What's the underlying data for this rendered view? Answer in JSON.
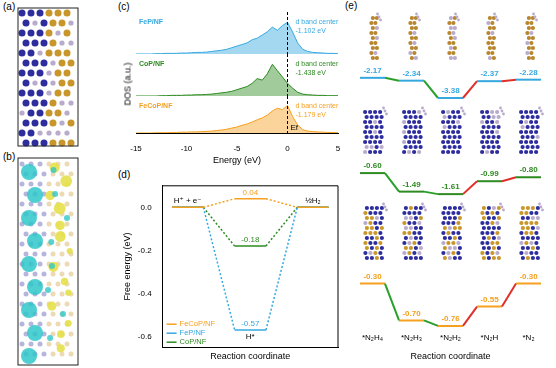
{
  "images": [
    {
      "panel": "(a)"
    },
    {
      "panel": "(b)"
    }
  ],
  "chart_data": [
    {
      "type": "line",
      "panel": "(c)",
      "title": "FeP/NF",
      "color": "#35a8e0",
      "x": [
        -15,
        -14.5,
        -14,
        -13.5,
        -13,
        -12.5,
        -12,
        -11.5,
        -11,
        -10.5,
        -10,
        -9.5,
        -9,
        -8.5,
        -8,
        -7.5,
        -7,
        -6.5,
        -6,
        -5.5,
        -5,
        -4.5,
        -4,
        -3.5,
        -3,
        -2.5,
        -2,
        -1.5,
        -1,
        -0.5,
        0,
        0.5,
        1,
        1.5,
        2,
        2.5,
        3,
        3.5,
        4,
        4.5,
        5
      ],
      "values": [
        0,
        0,
        0,
        0,
        0.01,
        0.01,
        0.02,
        0.02,
        0.02,
        0.03,
        0.03,
        0.04,
        0.05,
        0.05,
        0.06,
        0.08,
        0.1,
        0.12,
        0.15,
        0.2,
        0.25,
        0.3,
        0.35,
        0.45,
        0.5,
        0.6,
        0.7,
        0.85,
        0.75,
        0.9,
        1.0,
        0.7,
        0.35,
        0.15,
        0.08,
        0.05,
        0.04,
        0.03,
        0.02,
        0.02,
        0.01
      ],
      "xlim": [
        -15,
        5
      ],
      "ylim": [
        0,
        1.2
      ],
      "fermi_level": 0,
      "annotations": [
        "d band center",
        "-1.102 eV"
      ],
      "tick_labels": false
    },
    {
      "type": "line",
      "panel": "(c)",
      "title": "CoP/NF",
      "color": "#2e8b22",
      "ylabel": "DOS (a.u.)",
      "x": [
        -15,
        -14.5,
        -14,
        -13.5,
        -13,
        -12.5,
        -12,
        -11.5,
        -11,
        -10.5,
        -10,
        -9.5,
        -9,
        -8.5,
        -8,
        -7.5,
        -7,
        -6.5,
        -6,
        -5.5,
        -5,
        -4.5,
        -4,
        -3.5,
        -3,
        -2.5,
        -2,
        -1.5,
        -1,
        -0.5,
        0,
        0.5,
        1,
        1.5,
        2,
        2.5,
        3,
        3.5,
        4,
        4.5,
        5
      ],
      "values": [
        0,
        0,
        0,
        0,
        0,
        0.01,
        0.01,
        0.02,
        0.02,
        0.02,
        0.03,
        0.03,
        0.04,
        0.04,
        0.05,
        0.06,
        0.08,
        0.1,
        0.12,
        0.15,
        0.2,
        0.25,
        0.3,
        0.4,
        0.55,
        0.5,
        0.7,
        1.0,
        0.8,
        0.6,
        0.4,
        0.25,
        0.12,
        0.06,
        0.04,
        0.03,
        0.02,
        0.02,
        0.01,
        0.01,
        0.01
      ],
      "xlim": [
        -15,
        5
      ],
      "ylim": [
        0,
        1.2
      ],
      "fermi_level": 0,
      "annotations": [
        "d band center",
        "-1.438 eV"
      ],
      "tick_labels": false
    },
    {
      "type": "line",
      "panel": "(c)",
      "title": "FeCoP/NF",
      "color": "#f5a020",
      "x": [
        -15,
        -14.5,
        -14,
        -13.5,
        -13,
        -12.5,
        -12,
        -11.5,
        -11,
        -10.5,
        -10,
        -9.5,
        -9,
        -8.5,
        -8,
        -7.5,
        -7,
        -6.5,
        -6,
        -5.5,
        -5,
        -4.5,
        -4,
        -3.5,
        -3,
        -2.5,
        -2,
        -1.5,
        -1,
        -0.5,
        0,
        0.5,
        1,
        1.5,
        2,
        2.5,
        3,
        3.5,
        4,
        4.5,
        5
      ],
      "values": [
        0,
        0,
        0,
        0,
        0.01,
        0.01,
        0.01,
        0.02,
        0.02,
        0.03,
        0.03,
        0.04,
        0.04,
        0.05,
        0.06,
        0.07,
        0.09,
        0.11,
        0.14,
        0.18,
        0.22,
        0.28,
        0.33,
        0.4,
        0.48,
        0.55,
        0.65,
        0.8,
        0.9,
        0.85,
        1.0,
        0.6,
        0.3,
        0.12,
        0.07,
        0.05,
        0.04,
        0.03,
        0.02,
        0.02,
        0.01
      ],
      "xlim": [
        -15,
        5
      ],
      "ylim": [
        0,
        1.2
      ],
      "xticks": [
        -15,
        -10,
        -5,
        0,
        5
      ],
      "fermi_level": 0,
      "fermi_label": "Ef",
      "annotations": [
        "d band center",
        "-1.179 eV"
      ],
      "xlabel": "Energy (eV)",
      "tick_labels": "x"
    },
    {
      "type": "line",
      "panel": "(d)",
      "categories": [
        "H⁺ + e⁻",
        "H*",
        "½H₂"
      ],
      "series": [
        {
          "name": "FeCoP/NF",
          "color": "#f5a020",
          "values": [
            0,
            0.04,
            0
          ],
          "value_labels": [
            null,
            "0.04",
            null
          ]
        },
        {
          "name": "FeP/NF",
          "color": "#35a8e0",
          "values": [
            0,
            -0.57,
            0
          ],
          "value_labels": [
            null,
            "-0.57",
            null
          ]
        },
        {
          "name": "CoP/NF",
          "color": "#2e8b22",
          "values": [
            0,
            -0.18,
            0
          ],
          "value_labels": [
            null,
            "-0.18",
            null
          ]
        }
      ],
      "ylim": [
        -0.65,
        0.1
      ],
      "yticks": [
        {
          "value": 0,
          "label": "0.0"
        },
        -0.2,
        -0.4,
        -0.6
      ],
      "ylabel": "Free energy (eV)",
      "xlabel": "Reaction coordinate",
      "legend": "lower left",
      "data_labels": true,
      "tick_labels": "y",
      "line_style": "solid"
    },
    {
      "type": "line",
      "panel": "(e)",
      "color": "#35a8e0",
      "categories": [
        "*N₂H₄",
        "*N₂H₃",
        "*N₂H₂",
        "*N₂H",
        "*N₂"
      ],
      "values": [
        -2.17,
        -2.34,
        -3.38,
        -2.37,
        -2.28
      ],
      "ylim": [
        -3.5,
        -2.0
      ],
      "data_labels": true,
      "tick_labels": false
    },
    {
      "type": "line",
      "panel": "(e)",
      "color": "#2e8b22",
      "categories": [
        "*N₂H₄",
        "*N₂H₃",
        "*N₂H₂",
        "*N₂H",
        "*N₂"
      ],
      "values": [
        -0.6,
        -1.49,
        -1.61,
        -0.99,
        -0.8
      ],
      "value_labels": [
        "-0.60",
        "-1.49",
        "-1.61",
        "-0.99",
        "-0.80"
      ],
      "ylim": [
        -1.7,
        -0.5
      ],
      "data_labels": true,
      "tick_labels": false
    },
    {
      "type": "line",
      "panel": "(e)",
      "color": "#f5a020",
      "categories": [
        "*N₂H₄",
        "*N₂H₃",
        "*N₂H₂",
        "*N₂H",
        "*N₂"
      ],
      "values": [
        -0.3,
        -0.7,
        -0.76,
        -0.55,
        -0.3
      ],
      "value_labels": [
        "-0.30",
        "-0.70",
        "-0.76",
        "-0.55",
        "-0.30"
      ],
      "ylim": [
        -0.8,
        -0.25
      ],
      "data_labels": true,
      "tick_labels": "x",
      "xlabel": "Reaction coordinate"
    }
  ]
}
